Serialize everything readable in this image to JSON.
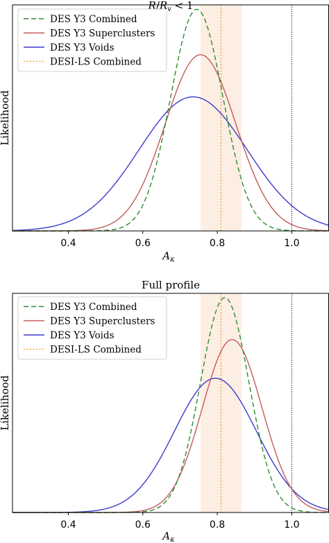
{
  "chart_data": [
    {
      "type": "line",
      "title": "R/R_v < 1",
      "title_parts": {
        "a": "R",
        "slash": "/",
        "b": "R",
        "sub": "v",
        "rest": " < 1"
      },
      "xlabel": "A_κ",
      "xlabel_parts": {
        "main": "A",
        "sub": "κ"
      },
      "ylabel": "Likelihood",
      "xlim": [
        0.25,
        1.1
      ],
      "ylim": [
        0,
        1.02
      ],
      "xticks": [
        0.4,
        0.6,
        0.8,
        1.0
      ],
      "xtick_labels": [
        "0.4",
        "0.6",
        "0.8",
        "1.0"
      ],
      "grid": false,
      "legend_position": "top-left",
      "reference_line": {
        "x": 1.0,
        "color": "#000000"
      },
      "band": {
        "x": [
          0.755,
          0.865
        ],
        "color": "#fdeee3"
      },
      "series": [
        {
          "name": "DES Y3 Combined",
          "mean": 0.745,
          "sigma": 0.07,
          "peak": 1.0,
          "color": "#2a8c2a",
          "style": "dashed"
        },
        {
          "name": "DES Y3 Superclusters",
          "mean": 0.755,
          "sigma": 0.095,
          "peak": 0.795,
          "color": "#c25a5a",
          "style": "solid"
        },
        {
          "name": "DES Y3 Voids",
          "mean": 0.735,
          "sigma": 0.145,
          "peak": 0.605,
          "color": "#3a3acc",
          "style": "solid"
        },
        {
          "name": "DESI-LS Combined",
          "vline": 0.81,
          "color": "#e8a13a",
          "style": "dotted"
        }
      ]
    },
    {
      "type": "line",
      "title": "Full profile",
      "xlabel": "A_κ",
      "xlabel_parts": {
        "main": "A",
        "sub": "κ"
      },
      "ylabel": "Likelihood",
      "xlim": [
        0.25,
        1.1
      ],
      "ylim": [
        0,
        1.02
      ],
      "xticks": [
        0.4,
        0.6,
        0.8,
        1.0
      ],
      "xtick_labels": [
        "0.4",
        "0.6",
        "0.8",
        "1.0"
      ],
      "grid": false,
      "legend_position": "top-left",
      "reference_line": {
        "x": 1.0,
        "color": "#000000"
      },
      "band": {
        "x": [
          0.755,
          0.865
        ],
        "color": "#fdeee3"
      },
      "series": [
        {
          "name": "DES Y3 Combined",
          "mean": 0.82,
          "sigma": 0.065,
          "peak": 1.0,
          "color": "#2a8c2a",
          "style": "dashed"
        },
        {
          "name": "DES Y3 Superclusters",
          "mean": 0.84,
          "sigma": 0.08,
          "peak": 0.805,
          "color": "#c25a5a",
          "style": "solid"
        },
        {
          "name": "DES Y3 Voids",
          "mean": 0.795,
          "sigma": 0.11,
          "peak": 0.625,
          "color": "#3a3acc",
          "style": "solid"
        },
        {
          "name": "DESI-LS Combined",
          "vline": 0.81,
          "color": "#e8a13a",
          "style": "dotted"
        }
      ]
    }
  ]
}
